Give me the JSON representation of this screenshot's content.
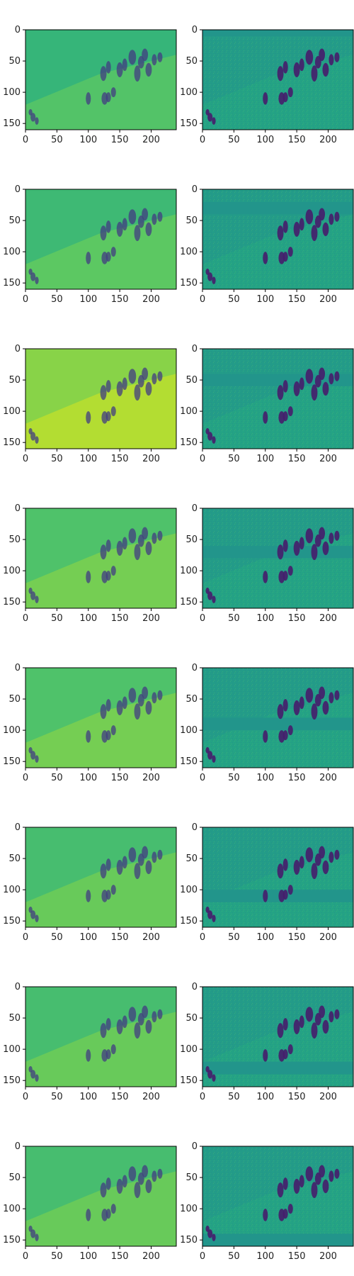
{
  "chart_data": {
    "type": "heatmap",
    "layout": {
      "rows": 8,
      "cols": 2
    },
    "colormap": "viridis",
    "image_size": [
      240,
      160
    ],
    "xlim": [
      0,
      240
    ],
    "ylim": [
      160,
      0
    ],
    "x_ticks": [
      0,
      50,
      100,
      150,
      200
    ],
    "y_ticks": [
      0,
      50,
      100,
      150
    ],
    "panels": [
      {
        "row": 0,
        "col": 0,
        "kind": "reconstruction",
        "tone": 0.66
      },
      {
        "row": 0,
        "col": 1,
        "kind": "residual",
        "tone": 0.5,
        "band_y": [
          0,
          10
        ]
      },
      {
        "row": 1,
        "col": 0,
        "kind": "reconstruction",
        "tone": 0.68
      },
      {
        "row": 1,
        "col": 1,
        "kind": "residual",
        "tone": 0.5,
        "band_y": [
          20,
          40
        ]
      },
      {
        "row": 2,
        "col": 0,
        "kind": "reconstruction",
        "tone": 0.82
      },
      {
        "row": 2,
        "col": 1,
        "kind": "residual",
        "tone": 0.5,
        "band_y": [
          40,
          60
        ]
      },
      {
        "row": 3,
        "col": 0,
        "kind": "reconstruction",
        "tone": 0.72
      },
      {
        "row": 3,
        "col": 1,
        "kind": "residual",
        "tone": 0.5,
        "band_y": [
          60,
          80
        ]
      },
      {
        "row": 4,
        "col": 0,
        "kind": "reconstruction",
        "tone": 0.72
      },
      {
        "row": 4,
        "col": 1,
        "kind": "residual",
        "tone": 0.5,
        "band_y": [
          80,
          100
        ]
      },
      {
        "row": 5,
        "col": 0,
        "kind": "reconstruction",
        "tone": 0.7
      },
      {
        "row": 5,
        "col": 1,
        "kind": "residual",
        "tone": 0.5,
        "band_y": [
          100,
          120
        ]
      },
      {
        "row": 6,
        "col": 0,
        "kind": "reconstruction",
        "tone": 0.7
      },
      {
        "row": 6,
        "col": 1,
        "kind": "residual",
        "tone": 0.5,
        "band_y": [
          120,
          140
        ]
      },
      {
        "row": 7,
        "col": 0,
        "kind": "reconstruction",
        "tone": 0.7
      },
      {
        "row": 7,
        "col": 1,
        "kind": "residual",
        "tone": 0.5,
        "band_y": [
          140,
          160
        ]
      }
    ]
  }
}
